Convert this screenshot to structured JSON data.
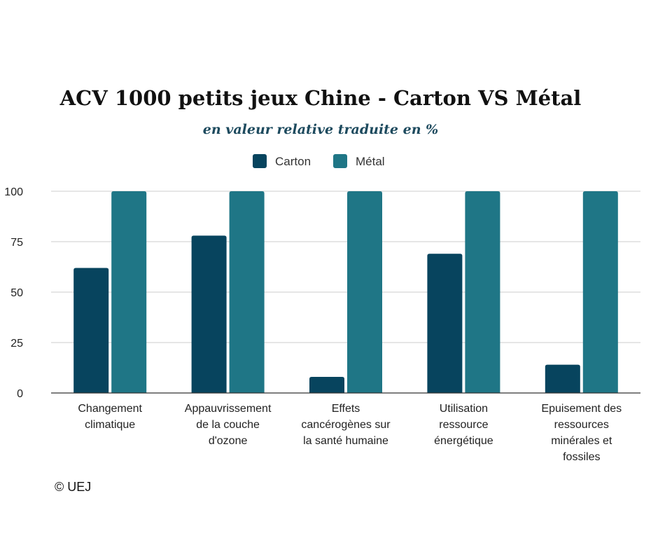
{
  "chart_data": {
    "type": "bar",
    "title": "ACV 1000 petits jeux Chine - Carton VS Métal",
    "subtitle": "en valeur relative traduite en %",
    "categories": [
      [
        "Changement",
        "climatique"
      ],
      [
        "Appauvrissement",
        "de la couche",
        "d'ozone"
      ],
      [
        "Effets",
        "cancérogènes sur",
        "la santé humaine"
      ],
      [
        "Utilisation",
        "ressource",
        "énergétique"
      ],
      [
        "Epuisement des",
        "ressources",
        "minérales et",
        "fossiles"
      ]
    ],
    "series": [
      {
        "name": "Carton",
        "color": "#07445e",
        "values": [
          62,
          78,
          8,
          69,
          14
        ]
      },
      {
        "name": "Métal",
        "color": "#1f7686",
        "values": [
          100,
          100,
          100,
          100,
          100
        ]
      }
    ],
    "xlabel": "",
    "ylabel": "",
    "ylim": [
      0,
      100
    ],
    "yticks": [
      "0",
      "25",
      "50",
      "75",
      "100"
    ],
    "grid": true,
    "legend": "top-center"
  },
  "credit": "© UEJ"
}
